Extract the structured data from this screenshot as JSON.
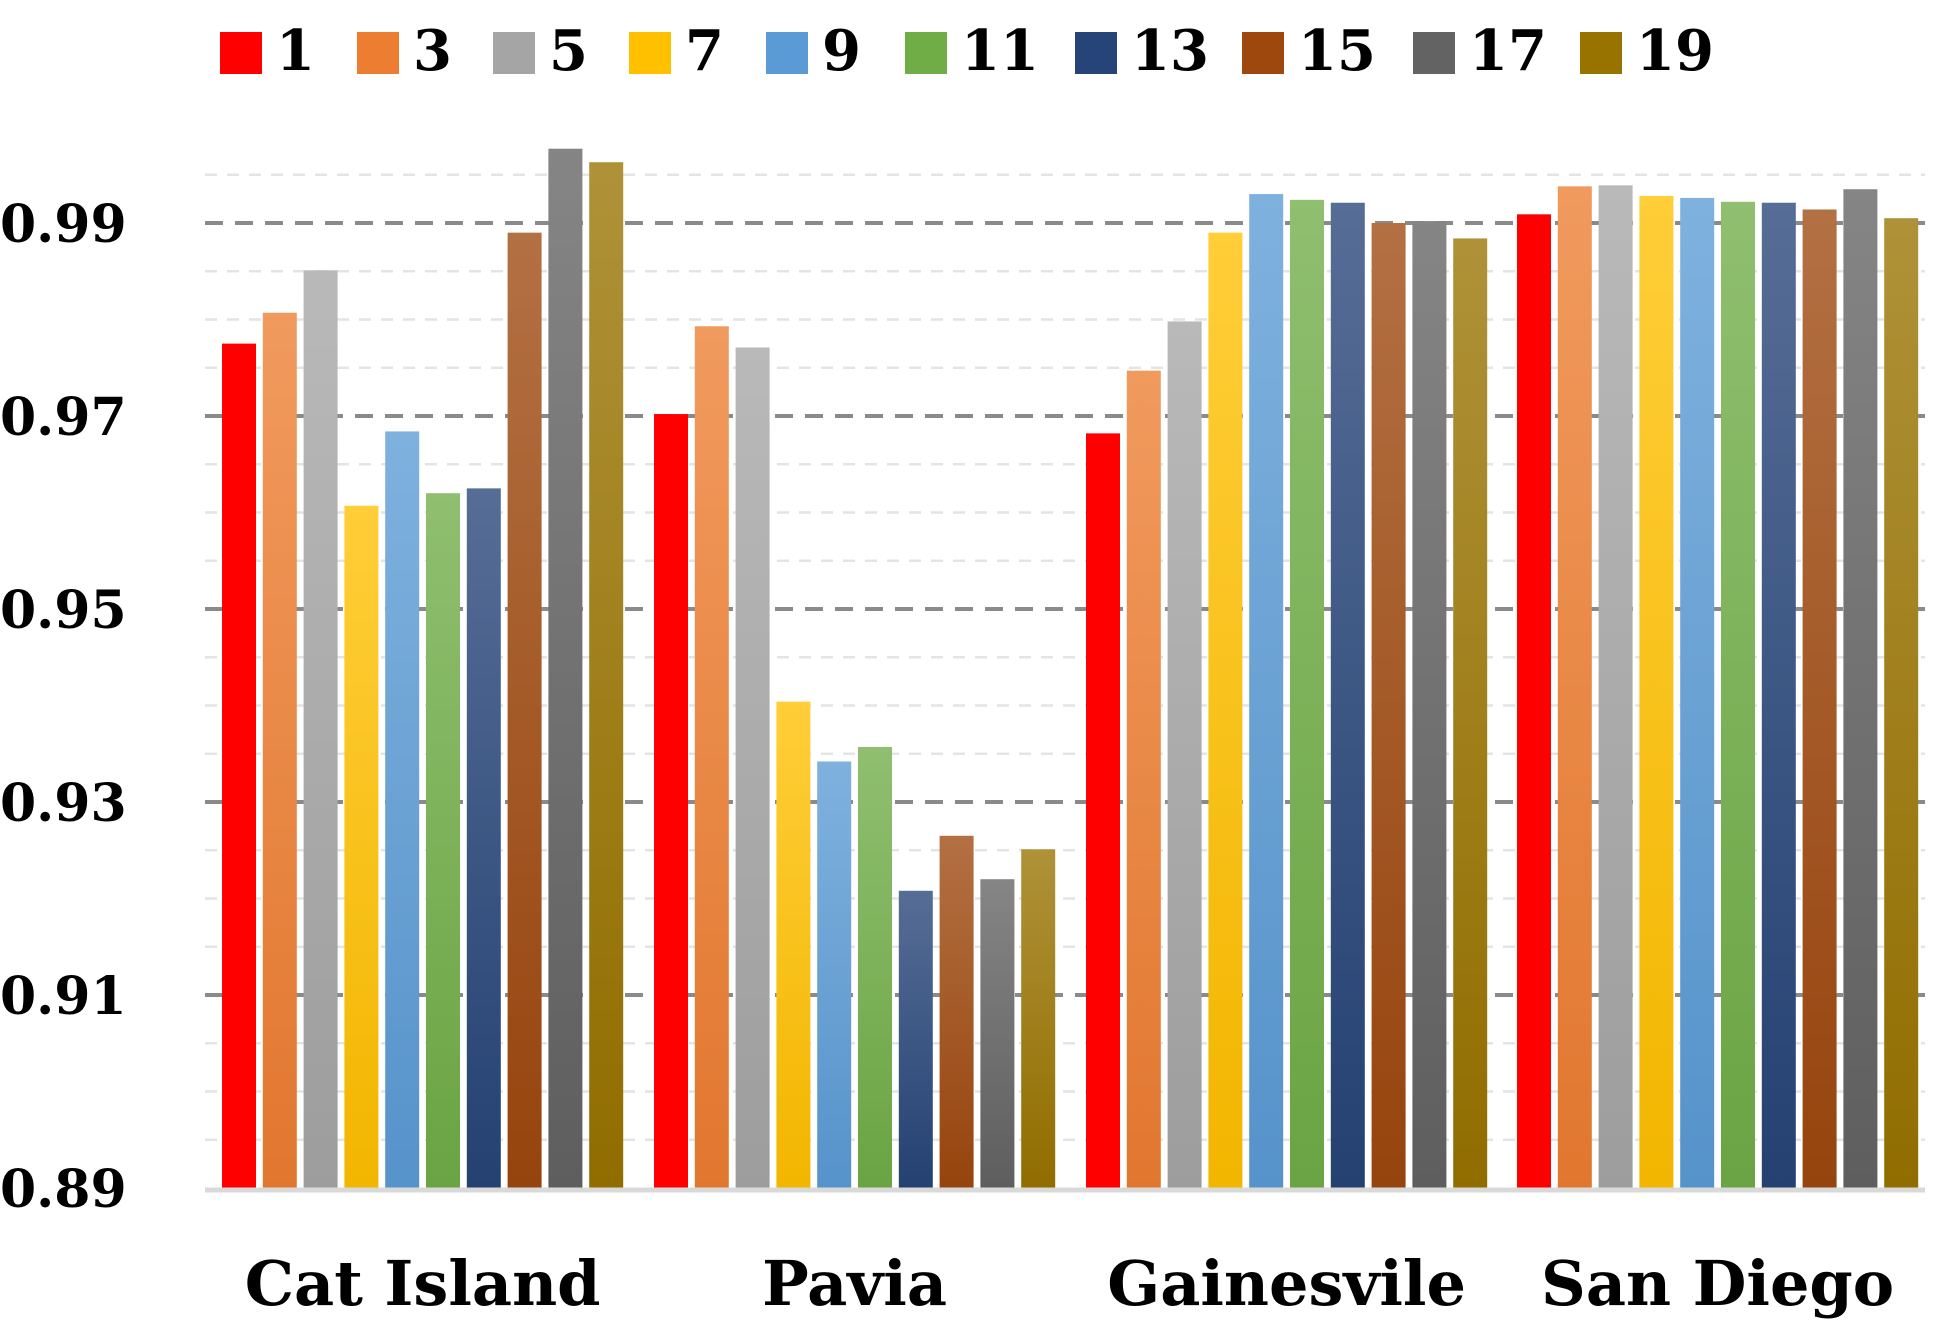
{
  "chart_data": {
    "type": "bar",
    "title": "",
    "xlabel": "",
    "ylabel": "",
    "ylim": [
      0.89,
      1.0
    ],
    "yticks": [
      "0.89",
      "0.91",
      "0.93",
      "0.95",
      "0.97",
      "0.99"
    ],
    "ytick_values": [
      0.89,
      0.91,
      0.93,
      0.95,
      0.97,
      0.99
    ],
    "grid": true,
    "legend_position": "top",
    "categories": [
      "Cat Island",
      "Pavia",
      "Gainesvile",
      "San Diego"
    ],
    "series": [
      {
        "name": "1",
        "color": "#ff0000",
        "values": [
          0.9775,
          0.9702,
          0.9682,
          0.9909
        ]
      },
      {
        "name": "3",
        "color": "#ed7d31",
        "values": [
          0.9807,
          0.9793,
          0.9747,
          0.9938
        ]
      },
      {
        "name": "5",
        "color": "#a5a5a5",
        "values": [
          0.9851,
          0.9771,
          0.9798,
          0.9939
        ]
      },
      {
        "name": "7",
        "color": "#ffc000",
        "values": [
          0.9607,
          0.9404,
          0.989,
          0.9928
        ]
      },
      {
        "name": "9",
        "color": "#5b9bd5",
        "values": [
          0.9684,
          0.9342,
          0.993,
          0.9926
        ]
      },
      {
        "name": "11",
        "color": "#70ad47",
        "values": [
          0.962,
          0.9357,
          0.9924,
          0.9922
        ]
      },
      {
        "name": "13",
        "color": "#264478",
        "values": [
          0.9625,
          0.9208,
          0.9921,
          0.9921
        ]
      },
      {
        "name": "15",
        "color": "#9e480e",
        "values": [
          0.989,
          0.9265,
          0.99,
          0.9914
        ]
      },
      {
        "name": "17",
        "color": "#636363",
        "values": [
          0.9977,
          0.922,
          0.9902,
          0.9935
        ]
      },
      {
        "name": "19",
        "color": "#997300",
        "values": [
          0.9963,
          0.9251,
          0.9884,
          0.9905
        ]
      }
    ]
  }
}
